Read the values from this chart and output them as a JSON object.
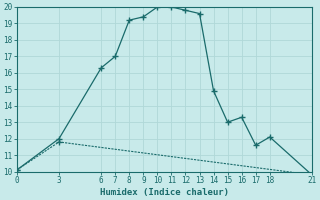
{
  "xlabel": "Humidex (Indice chaleur)",
  "bg_color": "#c8eaea",
  "grid_color": "#b0d8d8",
  "line_color": "#1a6b6b",
  "x_ticks": [
    0,
    3,
    6,
    7,
    8,
    9,
    10,
    11,
    12,
    13,
    14,
    15,
    16,
    17,
    18,
    21
  ],
  "ylim": [
    10,
    20
  ],
  "xlim": [
    0,
    21
  ],
  "y_ticks": [
    10,
    11,
    12,
    13,
    14,
    15,
    16,
    17,
    18,
    19,
    20
  ],
  "line1_x": [
    0,
    3,
    6,
    7,
    8,
    9,
    10,
    11,
    12,
    13,
    14,
    15,
    16,
    17,
    18,
    21
  ],
  "line1_y": [
    10.1,
    12.0,
    16.3,
    17.0,
    19.2,
    19.4,
    20.0,
    20.0,
    19.8,
    19.6,
    14.9,
    13.0,
    13.3,
    11.6,
    12.1,
    9.8
  ],
  "line2_x": [
    0,
    3,
    21
  ],
  "line2_y": [
    10.1,
    11.8,
    9.8
  ]
}
